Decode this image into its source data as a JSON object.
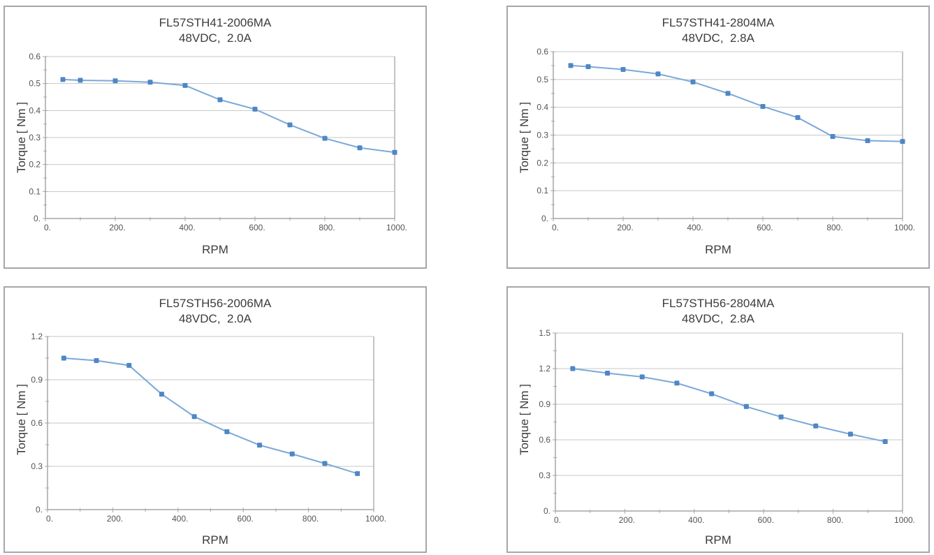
{
  "page": {
    "background": "#ffffff"
  },
  "colors": {
    "marker": "#4f87c5",
    "line": "#7aa9d9",
    "gridline": "#c7c7c7",
    "plot_border": "#b0b0b0",
    "axis": "#a6a6a6",
    "tick_label": "#545454",
    "title_text": "#3c3c3c",
    "panel_border": "#a6a6ab"
  },
  "chart_data": [
    {
      "type": "line",
      "title": "FL57STH41-2006MA",
      "subtitle": "48VDC,  2.0A",
      "xlabel": "RPM",
      "ylabel": "Torque [ Nm ]",
      "x": [
        50,
        100,
        200,
        300,
        400,
        500,
        600,
        700,
        800,
        900,
        1000
      ],
      "y": [
        0.515,
        0.512,
        0.51,
        0.505,
        0.493,
        0.44,
        0.405,
        0.347,
        0.297,
        0.262,
        0.245
      ],
      "xlim": [
        0,
        1000
      ],
      "ylim": [
        0,
        0.6
      ],
      "x_major_step": 200,
      "x_minor_step": 100,
      "y_major_step": 0.1,
      "y_minor_step": 0.05,
      "x_tick_labels": [
        "0.",
        "200.",
        "400.",
        "600.",
        "800.",
        "1000."
      ],
      "y_tick_labels": [
        "0.",
        "0.1",
        "0.2",
        "0.3",
        "0.4",
        "0.5",
        "0.6"
      ],
      "grid": "horizontal-major-only",
      "legend": "none"
    },
    {
      "type": "line",
      "title": "FL57STH41-2804MA",
      "subtitle": "48VDC,  2.8A",
      "xlabel": "RPM",
      "ylabel": "Torque [ Nm ]",
      "x": [
        50,
        100,
        200,
        300,
        400,
        500,
        600,
        700,
        800,
        900,
        1000
      ],
      "y": [
        0.55,
        0.546,
        0.536,
        0.52,
        0.491,
        0.45,
        0.403,
        0.363,
        0.295,
        0.28,
        0.277
      ],
      "xlim": [
        0,
        1000
      ],
      "ylim": [
        0,
        0.6
      ],
      "x_major_step": 200,
      "x_minor_step": 100,
      "y_major_step": 0.1,
      "y_minor_step": 0.05,
      "x_tick_labels": [
        "0.",
        "200.",
        "400.",
        "600.",
        "800.",
        "1000."
      ],
      "y_tick_labels": [
        "0.",
        "0.1",
        "0.2",
        "0.3",
        "0.4",
        "0.5",
        "0.6"
      ],
      "grid": "horizontal-major-only",
      "legend": "none"
    },
    {
      "type": "line",
      "title": "FL57STH56-2006MA",
      "subtitle": "48VDC,  2.0A",
      "xlabel": "RPM",
      "ylabel": "Torque [ Nm ]",
      "x": [
        50,
        150,
        250,
        350,
        450,
        550,
        650,
        750,
        850,
        950
      ],
      "y": [
        1.05,
        1.033,
        1.0,
        0.8,
        0.645,
        0.54,
        0.447,
        0.386,
        0.32,
        0.25
      ],
      "xlim": [
        0,
        1000
      ],
      "ylim": [
        0,
        1.2
      ],
      "x_major_step": 200,
      "x_minor_step": 100,
      "y_major_step": 0.3,
      "y_minor_step": 0.15,
      "x_tick_labels": [
        "0.",
        "200.",
        "400.",
        "600.",
        "800.",
        "1000."
      ],
      "y_tick_labels": [
        "0.",
        "0.3",
        "0.6",
        "0.9",
        "1.2"
      ],
      "grid": "horizontal-major-only",
      "legend": "none"
    },
    {
      "type": "line",
      "title": "FL57STH56-2804MA",
      "subtitle": "48VDC,  2.8A",
      "xlabel": "RPM",
      "ylabel": "Torque [ Nm ]",
      "x": [
        50,
        150,
        250,
        350,
        450,
        550,
        650,
        750,
        850,
        950
      ],
      "y": [
        1.2,
        1.162,
        1.13,
        1.078,
        0.988,
        0.88,
        0.793,
        0.717,
        0.648,
        0.585
      ],
      "xlim": [
        0,
        1000
      ],
      "ylim": [
        0,
        1.5
      ],
      "x_major_step": 200,
      "x_minor_step": 100,
      "y_major_step": 0.3,
      "y_minor_step": 0.15,
      "x_tick_labels": [
        "0.",
        "200.",
        "400.",
        "600.",
        "800.",
        "1000."
      ],
      "y_tick_labels": [
        "0.",
        "0.3",
        "0.6",
        "0.9",
        "1.2",
        "1.5"
      ],
      "grid": "horizontal-major-only",
      "legend": "none"
    }
  ]
}
